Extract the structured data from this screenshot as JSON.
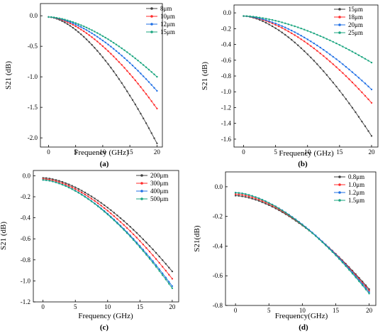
{
  "colors": {
    "series": [
      "#404040",
      "#ff2a2a",
      "#1f6fe5",
      "#1aa57f"
    ]
  },
  "chart_data": [
    {
      "type": "line",
      "panel_label": "(a)",
      "xlabel": "Frequency (GHz)",
      "ylabel": "S21 (dB)",
      "xlim": [
        -1.5,
        21
      ],
      "ylim": [
        -2.15,
        0.2
      ],
      "xticks": [
        0,
        5,
        10,
        15,
        20
      ],
      "xtick_labels": [
        "0",
        "5",
        "10",
        "15",
        "20"
      ],
      "yticks": [
        0.0,
        -0.5,
        -1.0,
        -1.5,
        -2.0
      ],
      "ytick_labels": [
        "0.0",
        "-0.5",
        "-1.0",
        "-1.5",
        "-2.0"
      ],
      "legend_position": "top-right",
      "series": [
        {
          "name": "8μm",
          "start": -0.02,
          "end": -2.09
        },
        {
          "name": "10μm",
          "start": -0.02,
          "end": -1.52
        },
        {
          "name": "12μm",
          "start": -0.02,
          "end": -1.23
        },
        {
          "name": "15μm",
          "start": -0.02,
          "end": -1.0
        }
      ]
    },
    {
      "type": "line",
      "panel_label": "(b)",
      "xlabel": "Frequency (GHz)",
      "ylabel": "S21 (dB)",
      "xlim": [
        -1.5,
        21
      ],
      "ylim": [
        -1.7,
        0.1
      ],
      "xticks": [
        0,
        5,
        10,
        15,
        20
      ],
      "xtick_labels": [
        "0",
        "5",
        "10",
        "15",
        "20"
      ],
      "yticks": [
        0.0,
        -0.2,
        -0.4,
        -0.6,
        -0.8,
        -1.0,
        -1.2,
        -1.4,
        -1.6
      ],
      "ytick_labels": [
        "0.0",
        "-0.2",
        "-0.4",
        "-0.6",
        "-0.8",
        "-1.0",
        "-1.2",
        "-1.4",
        "-1.6"
      ],
      "legend_position": "top-right",
      "series": [
        {
          "name": "15μm",
          "start": -0.04,
          "end": -1.56
        },
        {
          "name": "18μm",
          "start": -0.04,
          "end": -1.14
        },
        {
          "name": "20μm",
          "start": -0.04,
          "end": -0.97
        },
        {
          "name": "25μm",
          "start": -0.04,
          "end": -0.63
        }
      ]
    },
    {
      "type": "line",
      "panel_label": "(c)",
      "xlabel": "Frequency (GHz)",
      "ylabel": "S21 (dB)",
      "xlim": [
        -1.5,
        21
      ],
      "ylim": [
        -1.2,
        0.05
      ],
      "xticks": [
        0,
        5,
        10,
        15,
        20
      ],
      "xtick_labels": [
        "0",
        "5",
        "10",
        "15",
        "20"
      ],
      "yticks": [
        0.0,
        -0.2,
        -0.4,
        -0.6,
        -0.8,
        -1.0,
        -1.2
      ],
      "ytick_labels": [
        "0.0",
        "-0.2",
        "-0.4",
        "-0.6",
        "-0.8",
        "-1.0",
        "-1.2"
      ],
      "legend_position": "top-right",
      "series": [
        {
          "name": "200μm",
          "start": -0.02,
          "end": -0.91
        },
        {
          "name": "300μm",
          "start": -0.03,
          "end": -0.98
        },
        {
          "name": "400μm",
          "start": -0.04,
          "end": -1.05
        },
        {
          "name": "500μm",
          "start": -0.04,
          "end": -1.07
        }
      ]
    },
    {
      "type": "line",
      "panel_label": "(d)",
      "xlabel": "Frequency(GHz)",
      "ylabel": "S21(dB)",
      "xlim": [
        -1.5,
        21
      ],
      "ylim": [
        -0.8,
        0.1
      ],
      "xticks": [
        0,
        5,
        10,
        15,
        20
      ],
      "xtick_labels": [
        "0",
        "5",
        "10",
        "15",
        "20"
      ],
      "yticks": [
        0.0,
        -0.2,
        -0.4,
        -0.6,
        -0.8
      ],
      "ytick_labels": [
        "0.0",
        "-0.2",
        "-0.4",
        "-0.6",
        "-0.8"
      ],
      "legend_position": "top-right",
      "series": [
        {
          "name": "0.8μm",
          "start": -0.06,
          "end": -0.69
        },
        {
          "name": "1.0μm",
          "start": -0.05,
          "end": -0.7
        },
        {
          "name": "1.2μm",
          "start": -0.04,
          "end": -0.71
        },
        {
          "name": "1.5μm",
          "start": -0.04,
          "end": -0.72
        }
      ]
    }
  ]
}
